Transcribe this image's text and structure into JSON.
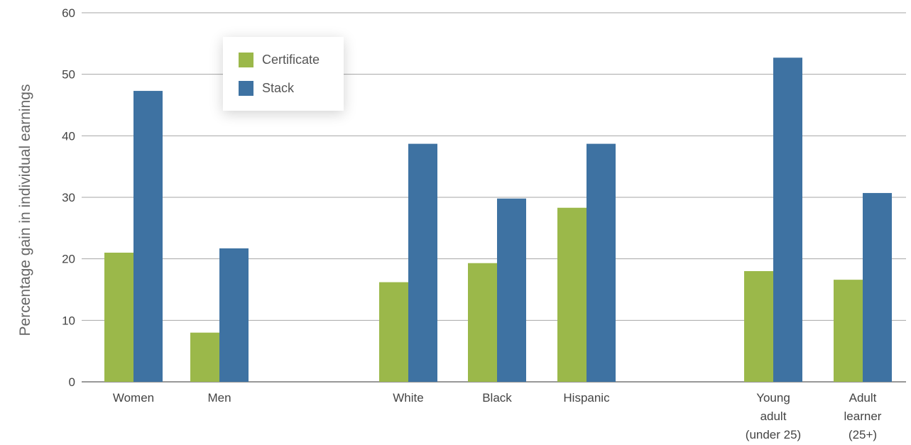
{
  "chart_data": {
    "type": "bar",
    "ylabel": "Percentage gain in individual earnings",
    "ylim": [
      0,
      60
    ],
    "yticks": [
      0,
      10,
      20,
      30,
      40,
      50,
      60
    ],
    "grid": true,
    "legend_position": "top-left",
    "categories": [
      [
        "Women"
      ],
      [
        "Men"
      ],
      [
        "White"
      ],
      [
        "Black"
      ],
      [
        "Hispanic"
      ],
      [
        "Young",
        "adult",
        "(under 25)"
      ],
      [
        "Adult",
        "learner",
        "(25+)"
      ]
    ],
    "series": [
      {
        "name": "Certificate",
        "color": "#9bb84a",
        "values": [
          21,
          8,
          16.2,
          19.3,
          28.3,
          18,
          16.6
        ]
      },
      {
        "name": "Stack",
        "color": "#3e72a2",
        "values": [
          47.3,
          21.7,
          38.7,
          29.8,
          38.7,
          52.7,
          30.7
        ]
      }
    ]
  }
}
